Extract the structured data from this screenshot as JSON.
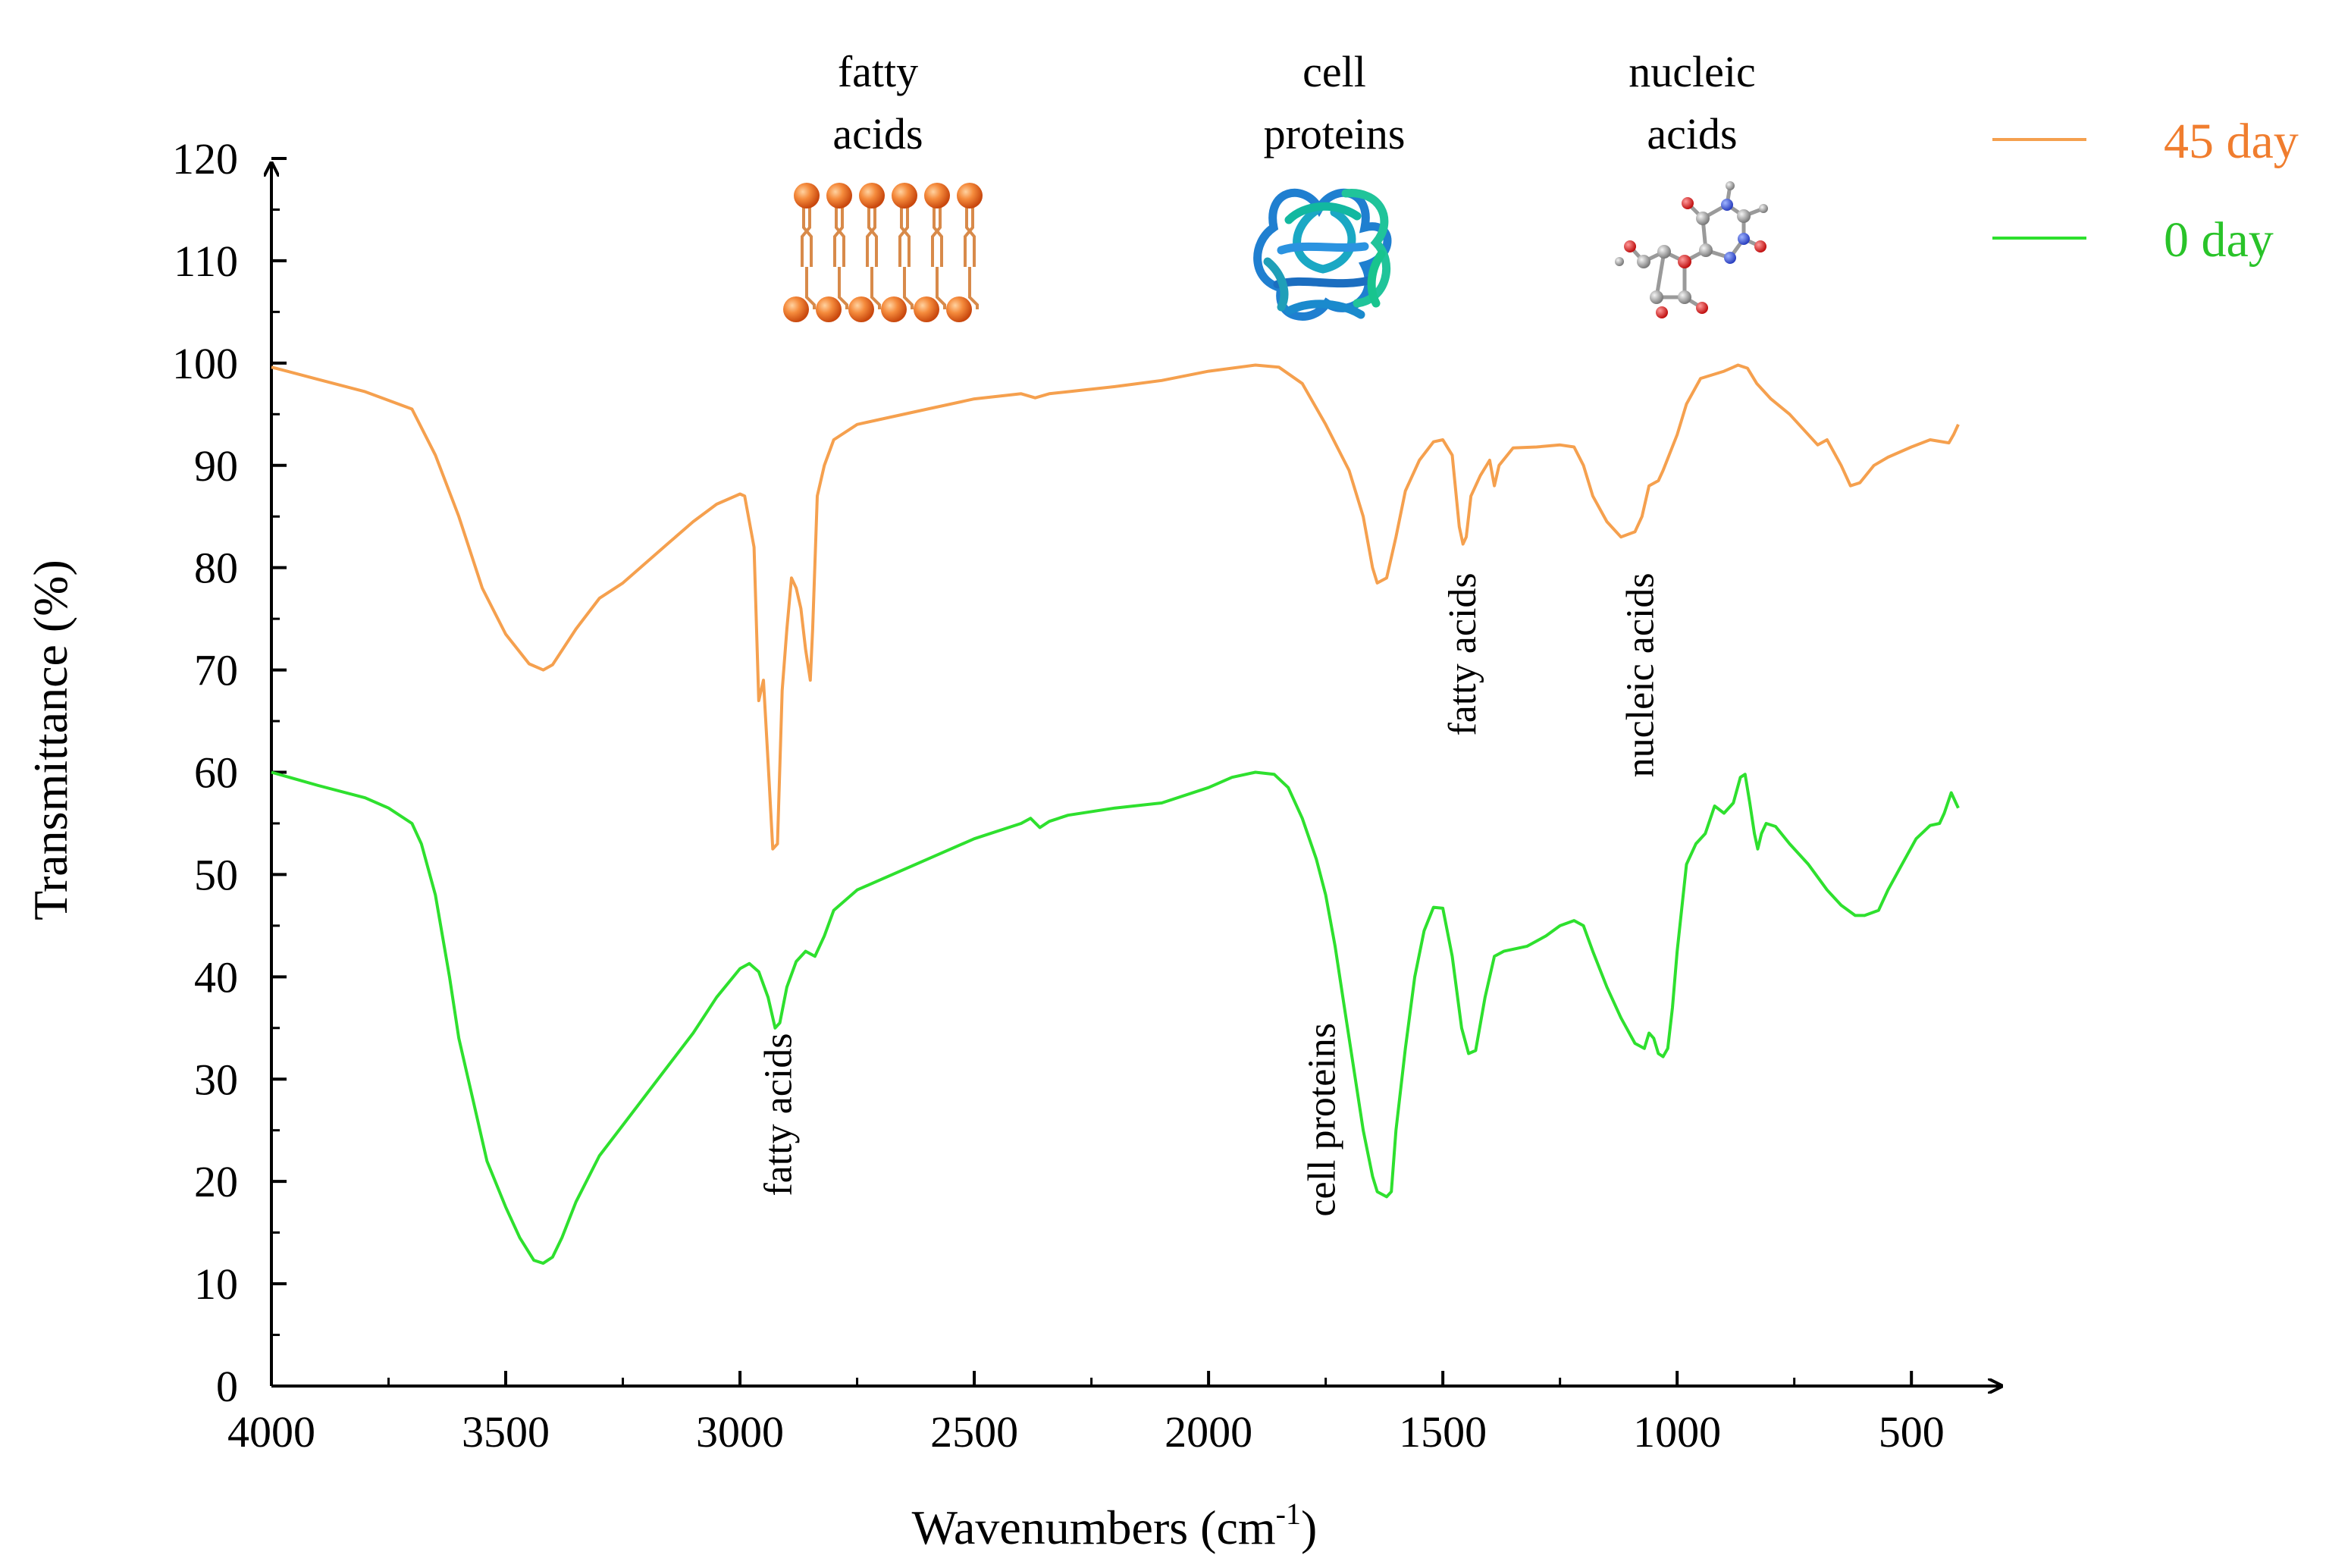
{
  "chart_data": {
    "type": "line",
    "title": "",
    "xlabel": "Wavenumbers (cm",
    "xlabel_sup": "-1",
    "xlabel_close": ")",
    "ylabel": "Transmittance (%)",
    "xlim": [
      4000,
      400
    ],
    "ylim": [
      0,
      120
    ],
    "x_ticks": [
      4000,
      3500,
      3000,
      2500,
      2000,
      1500,
      1000,
      500
    ],
    "y_ticks": [
      0,
      10,
      20,
      30,
      40,
      50,
      60,
      70,
      80,
      90,
      100,
      110,
      120
    ],
    "legend_position": "top-right",
    "series": [
      {
        "name": "45 day",
        "color": "#f5a04e",
        "label_color": "#f07d2e",
        "points": [
          [
            4000,
            99.6
          ],
          [
            3900,
            98.4
          ],
          [
            3800,
            97.2
          ],
          [
            3700,
            95.5
          ],
          [
            3650,
            91
          ],
          [
            3600,
            85
          ],
          [
            3550,
            78
          ],
          [
            3500,
            73.5
          ],
          [
            3450,
            70.6
          ],
          [
            3420,
            70
          ],
          [
            3400,
            70.5
          ],
          [
            3350,
            74
          ],
          [
            3300,
            77
          ],
          [
            3250,
            78.5
          ],
          [
            3200,
            80.5
          ],
          [
            3150,
            82.5
          ],
          [
            3100,
            84.5
          ],
          [
            3050,
            86.2
          ],
          [
            3000,
            87.2
          ],
          [
            2990,
            87
          ],
          [
            2970,
            82
          ],
          [
            2960,
            67
          ],
          [
            2950,
            69
          ],
          [
            2940,
            61
          ],
          [
            2930,
            52.5
          ],
          [
            2920,
            53
          ],
          [
            2910,
            68
          ],
          [
            2900,
            74
          ],
          [
            2890,
            79
          ],
          [
            2880,
            78
          ],
          [
            2870,
            76
          ],
          [
            2860,
            72
          ],
          [
            2850,
            69
          ],
          [
            2845,
            74
          ],
          [
            2835,
            87
          ],
          [
            2820,
            90
          ],
          [
            2800,
            92.5
          ],
          [
            2750,
            94
          ],
          [
            2700,
            94.5
          ],
          [
            2600,
            95.5
          ],
          [
            2500,
            96.5
          ],
          [
            2400,
            97
          ],
          [
            2370,
            96.6
          ],
          [
            2340,
            97
          ],
          [
            2300,
            97.2
          ],
          [
            2200,
            97.7
          ],
          [
            2100,
            98.3
          ],
          [
            2000,
            99.2
          ],
          [
            1900,
            99.8
          ],
          [
            1850,
            99.6
          ],
          [
            1800,
            98
          ],
          [
            1750,
            94
          ],
          [
            1700,
            89.5
          ],
          [
            1670,
            85
          ],
          [
            1650,
            80
          ],
          [
            1640,
            78.5
          ],
          [
            1620,
            79
          ],
          [
            1600,
            83
          ],
          [
            1580,
            87.5
          ],
          [
            1550,
            90.5
          ],
          [
            1520,
            92.3
          ],
          [
            1500,
            92.5
          ],
          [
            1480,
            91
          ],
          [
            1465,
            84
          ],
          [
            1457,
            82.3
          ],
          [
            1450,
            83
          ],
          [
            1440,
            87
          ],
          [
            1420,
            89
          ],
          [
            1400,
            90.5
          ],
          [
            1390,
            88
          ],
          [
            1380,
            90
          ],
          [
            1350,
            91.7
          ],
          [
            1300,
            91.8
          ],
          [
            1250,
            92
          ],
          [
            1220,
            91.8
          ],
          [
            1200,
            90
          ],
          [
            1180,
            87
          ],
          [
            1150,
            84.5
          ],
          [
            1120,
            83
          ],
          [
            1090,
            83.5
          ],
          [
            1075,
            85
          ],
          [
            1060,
            88
          ],
          [
            1040,
            88.5
          ],
          [
            1030,
            89.5
          ],
          [
            1000,
            93
          ],
          [
            980,
            96
          ],
          [
            950,
            98.5
          ],
          [
            900,
            99.2
          ],
          [
            870,
            99.8
          ],
          [
            850,
            99.5
          ],
          [
            830,
            98
          ],
          [
            800,
            96.5
          ],
          [
            760,
            95
          ],
          [
            720,
            93
          ],
          [
            700,
            92
          ],
          [
            680,
            92.5
          ],
          [
            650,
            90
          ],
          [
            630,
            88
          ],
          [
            610,
            88.3
          ],
          [
            580,
            90
          ],
          [
            550,
            90.8
          ],
          [
            500,
            91.8
          ],
          [
            460,
            92.5
          ],
          [
            420,
            92.2
          ],
          [
            410,
            93
          ],
          [
            400,
            94
          ]
        ]
      },
      {
        "name": "0 day",
        "color": "#2ee02e",
        "label_color": "#29c329",
        "points": [
          [
            4000,
            60
          ],
          [
            3900,
            58.7
          ],
          [
            3800,
            57.5
          ],
          [
            3750,
            56.5
          ],
          [
            3700,
            55
          ],
          [
            3680,
            53
          ],
          [
            3650,
            48
          ],
          [
            3620,
            40
          ],
          [
            3600,
            34
          ],
          [
            3570,
            28
          ],
          [
            3540,
            22
          ],
          [
            3500,
            17.5
          ],
          [
            3470,
            14.5
          ],
          [
            3440,
            12.3
          ],
          [
            3420,
            12
          ],
          [
            3400,
            12.6
          ],
          [
            3380,
            14.5
          ],
          [
            3350,
            18
          ],
          [
            3300,
            22.5
          ],
          [
            3250,
            25.5
          ],
          [
            3200,
            28.5
          ],
          [
            3150,
            31.5
          ],
          [
            3100,
            34.5
          ],
          [
            3050,
            38
          ],
          [
            3000,
            40.8
          ],
          [
            2980,
            41.3
          ],
          [
            2960,
            40.5
          ],
          [
            2940,
            38
          ],
          [
            2925,
            35
          ],
          [
            2915,
            35.5
          ],
          [
            2900,
            39
          ],
          [
            2880,
            41.5
          ],
          [
            2860,
            42.5
          ],
          [
            2840,
            42
          ],
          [
            2820,
            44
          ],
          [
            2800,
            46.5
          ],
          [
            2750,
            48.5
          ],
          [
            2700,
            49.5
          ],
          [
            2600,
            51.5
          ],
          [
            2500,
            53.5
          ],
          [
            2400,
            55
          ],
          [
            2380,
            55.5
          ],
          [
            2360,
            54.6
          ],
          [
            2340,
            55.2
          ],
          [
            2300,
            55.8
          ],
          [
            2200,
            56.5
          ],
          [
            2100,
            57
          ],
          [
            2000,
            58.5
          ],
          [
            1950,
            59.5
          ],
          [
            1900,
            60
          ],
          [
            1860,
            59.8
          ],
          [
            1830,
            58.5
          ],
          [
            1800,
            55.5
          ],
          [
            1770,
            51.5
          ],
          [
            1750,
            48
          ],
          [
            1730,
            43
          ],
          [
            1710,
            37
          ],
          [
            1690,
            31
          ],
          [
            1670,
            25
          ],
          [
            1650,
            20.5
          ],
          [
            1640,
            19
          ],
          [
            1620,
            18.5
          ],
          [
            1610,
            19
          ],
          [
            1600,
            25
          ],
          [
            1580,
            33
          ],
          [
            1560,
            40
          ],
          [
            1540,
            44.5
          ],
          [
            1520,
            46.8
          ],
          [
            1500,
            46.7
          ],
          [
            1480,
            42
          ],
          [
            1460,
            35
          ],
          [
            1445,
            32.5
          ],
          [
            1430,
            32.8
          ],
          [
            1410,
            38
          ],
          [
            1390,
            42
          ],
          [
            1370,
            42.5
          ],
          [
            1320,
            43
          ],
          [
            1280,
            44
          ],
          [
            1250,
            45
          ],
          [
            1220,
            45.5
          ],
          [
            1200,
            45
          ],
          [
            1180,
            42.5
          ],
          [
            1150,
            39
          ],
          [
            1120,
            36
          ],
          [
            1090,
            33.5
          ],
          [
            1070,
            33
          ],
          [
            1060,
            34.5
          ],
          [
            1050,
            34
          ],
          [
            1040,
            32.5
          ],
          [
            1030,
            32.2
          ],
          [
            1020,
            33
          ],
          [
            1010,
            37
          ],
          [
            1000,
            42.5
          ],
          [
            980,
            51
          ],
          [
            960,
            53
          ],
          [
            940,
            54
          ],
          [
            920,
            56.7
          ],
          [
            900,
            56
          ],
          [
            880,
            57
          ],
          [
            865,
            59.5
          ],
          [
            855,
            59.8
          ],
          [
            845,
            57
          ],
          [
            835,
            54
          ],
          [
            828,
            52.5
          ],
          [
            820,
            54
          ],
          [
            810,
            55
          ],
          [
            790,
            54.7
          ],
          [
            760,
            53
          ],
          [
            720,
            51
          ],
          [
            680,
            48.5
          ],
          [
            650,
            47
          ],
          [
            620,
            46
          ],
          [
            600,
            46
          ],
          [
            570,
            46.5
          ],
          [
            550,
            48.5
          ],
          [
            520,
            51
          ],
          [
            490,
            53.5
          ],
          [
            460,
            54.8
          ],
          [
            440,
            55
          ],
          [
            430,
            56
          ],
          [
            415,
            58
          ],
          [
            405,
            57
          ],
          [
            400,
            56.5
          ]
        ]
      }
    ],
    "peak_annotations": [
      {
        "text": "fatty acids",
        "x": 2920,
        "y": 34.5,
        "series": "0 day"
      },
      {
        "text": "cell proteins",
        "x": 1760,
        "y": 35.5,
        "series": "0 day"
      },
      {
        "text": "fatty acids",
        "x": 1460,
        "y": 79.5,
        "series": "45 day"
      },
      {
        "text": "nucleic acids",
        "x": 1080,
        "y": 79.5,
        "series": "45 day"
      }
    ],
    "group_labels": [
      {
        "lines": [
          "fatty",
          "acids"
        ],
        "x": 2720,
        "icon": "lipid-bilayer-icon"
      },
      {
        "lines": [
          "cell",
          "proteins"
        ],
        "x": 1730,
        "icon": "protein-icon"
      },
      {
        "lines": [
          "nucleic",
          "acids"
        ],
        "x": 1010,
        "icon": "nucleic-acid-molecule-icon"
      }
    ]
  }
}
